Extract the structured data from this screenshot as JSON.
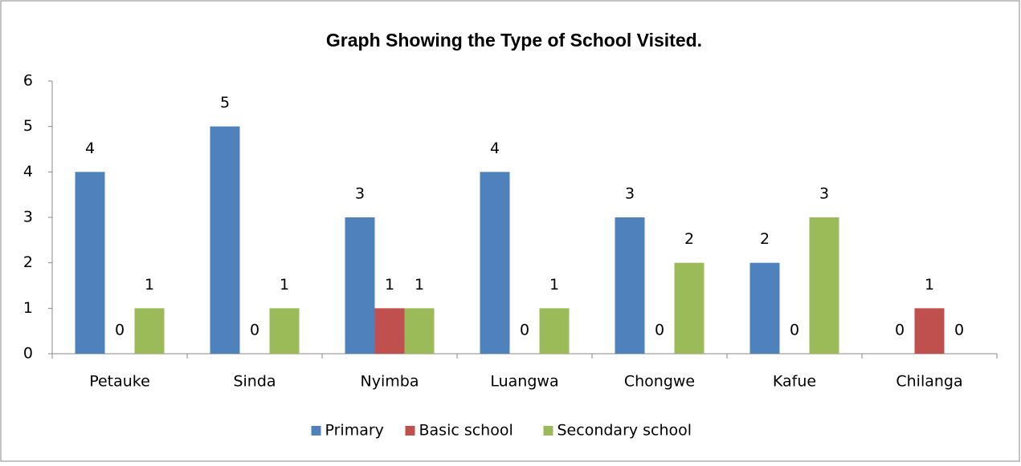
{
  "chart_data": {
    "type": "bar",
    "title": "Graph Showing the Type of School Visited.",
    "categories": [
      "Petauke",
      "Sinda",
      "Nyimba",
      "Luangwa",
      "Chongwe",
      "Kafue",
      "Chilanga"
    ],
    "series": [
      {
        "name": "Primary",
        "color": "#4f81bd",
        "values": [
          4,
          5,
          3,
          4,
          3,
          2,
          0
        ]
      },
      {
        "name": "Basic school",
        "color": "#c0504d",
        "values": [
          0,
          0,
          1,
          0,
          0,
          0,
          1
        ]
      },
      {
        "name": "Secondary school",
        "color": "#9bbb59",
        "values": [
          1,
          1,
          1,
          1,
          2,
          3,
          0
        ]
      }
    ],
    "ylim": [
      0,
      6
    ],
    "yticks": [
      0,
      1,
      2,
      3,
      4,
      5,
      6
    ],
    "grid": false,
    "legend": "bottom"
  }
}
